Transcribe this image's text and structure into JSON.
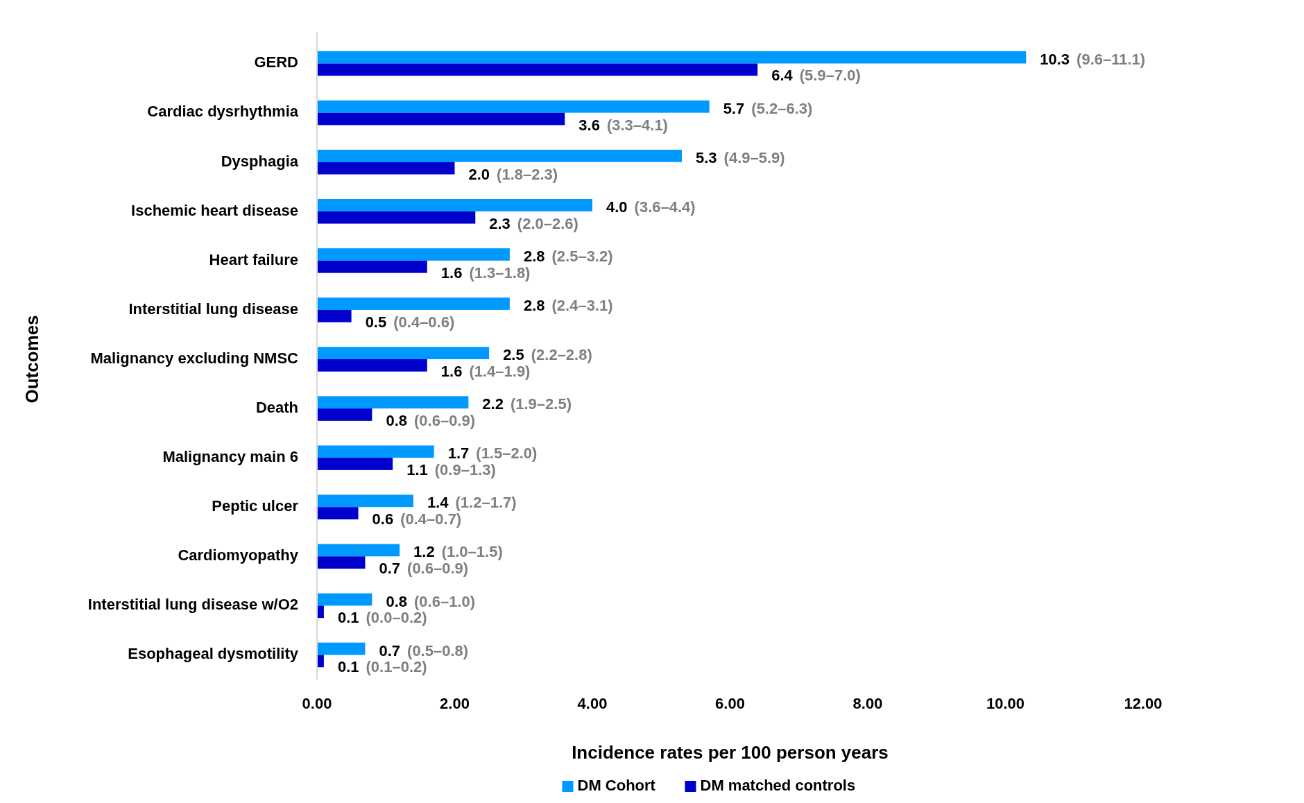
{
  "chart_data": {
    "type": "bar",
    "orientation": "horizontal",
    "xlabel": "Incidence rates per 100 person years",
    "ylabel": "Outcomes",
    "categories": [
      "GERD",
      "Cardiac dysrhythmia",
      "Dysphagia",
      "Ischemic heart disease",
      "Heart failure",
      "Interstitial lung disease",
      "Malignancy excluding NMSC",
      "Death",
      "Malignancy main 6",
      "Peptic ulcer",
      "Cardiomyopathy",
      "Interstitial lung disease w/O2",
      "Esophageal dysmotility"
    ],
    "series": [
      {
        "name": "DM Cohort",
        "color": "#0099ff",
        "values": [
          10.3,
          5.7,
          5.3,
          4.0,
          2.8,
          2.8,
          2.5,
          2.2,
          1.7,
          1.4,
          1.2,
          0.8,
          0.7
        ],
        "value_labels": [
          "10.3 (9.6–11.1)",
          "5.7 (5.2–6.3)",
          "5.3 (4.9–5.9)",
          "4.0 (3.6–4.4)",
          "2.8 (2.5–3.2)",
          "2.8 (2.4–3.1)",
          "2.5 (2.2–2.8)",
          "2.2 (1.9–2.5)",
          "1.7 (1.5–2.0)",
          "1.4 (1.2–1.7)",
          "1.2 (1.0–1.5)",
          "0.8 (0.6–1.0)",
          "0.7 (0.5–0.8)"
        ]
      },
      {
        "name": "DM matched controls",
        "color": "#0000cc",
        "values": [
          6.4,
          3.6,
          2.0,
          2.3,
          1.6,
          0.5,
          1.6,
          0.8,
          1.1,
          0.6,
          0.7,
          0.1,
          0.1
        ],
        "value_labels": [
          "6.4 (5.9–7.0)",
          "3.6 (3.3–4.1)",
          "2.0 (1.8–2.3)",
          "2.3 (2.0–2.6)",
          "1.6 (1.3–1.8)",
          "0.5 (0.4–0.6)",
          "1.6 (1.4–1.9)",
          "0.8 (0.6–0.9)",
          "1.1 (0.9–1.3)",
          "0.6 (0.4–0.7)",
          "0.7 (0.6–0.9)",
          "0.1 (0.0–0.2)",
          "0.1 (0.1–0.2)"
        ]
      }
    ],
    "xlim": [
      0,
      12
    ],
    "xticks": [
      {
        "value": 0,
        "label": "0.00"
      },
      {
        "value": 2,
        "label": "2.00"
      },
      {
        "value": 4,
        "label": "4.00"
      },
      {
        "value": 6,
        "label": "6.00"
      },
      {
        "value": 8,
        "label": "8.00"
      },
      {
        "value": 10,
        "label": "10.00"
      },
      {
        "value": 12,
        "label": "12.00"
      }
    ],
    "grid": false,
    "legend": "bottom"
  }
}
